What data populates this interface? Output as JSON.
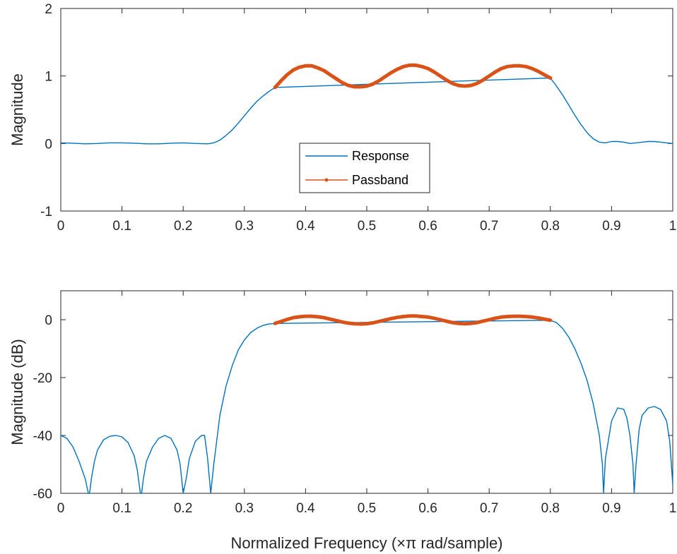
{
  "figure": {
    "xlabel": "Normalized Frequency (×π rad/sample)"
  },
  "chart_data": [
    {
      "type": "line",
      "xlabel": "",
      "ylabel": "Magnitude",
      "xlim": [
        0,
        1
      ],
      "ylim": [
        -1,
        2
      ],
      "xticks": [
        0,
        0.1,
        0.2,
        0.3,
        0.4,
        0.5,
        0.6,
        0.7,
        0.8,
        0.9,
        1
      ],
      "xtick_labels": [
        "0",
        "0.1",
        "0.2",
        "0.3",
        "0.4",
        "0.5",
        "0.6",
        "0.7",
        "0.8",
        "0.9",
        "1"
      ],
      "yticks": [
        -1,
        0,
        1,
        2
      ],
      "ytick_labels": [
        "-1",
        "0",
        "1",
        "2"
      ],
      "grid": false,
      "legend": {
        "placement": "center",
        "entries": [
          "Response",
          "Passband"
        ]
      },
      "series": [
        {
          "name": "Response",
          "color": "#0072BD",
          "x": [
            0,
            0.02,
            0.04,
            0.06,
            0.08,
            0.1,
            0.12,
            0.14,
            0.16,
            0.18,
            0.2,
            0.22,
            0.24,
            0.25,
            0.26,
            0.27,
            0.28,
            0.29,
            0.3,
            0.31,
            0.32,
            0.33,
            0.34,
            0.35,
            0.8,
            0.81,
            0.82,
            0.83,
            0.84,
            0.85,
            0.86,
            0.87,
            0.88,
            0.89,
            0.9,
            0.91,
            0.92,
            0.93,
            0.94,
            0.95,
            0.96,
            0.97,
            0.98,
            0.99,
            1.0
          ],
          "y": [
            0.01,
            0.005,
            -0.005,
            0.0,
            0.01,
            0.01,
            0.005,
            -0.005,
            -0.005,
            0.005,
            0.01,
            0.0,
            -0.005,
            0.01,
            0.05,
            0.12,
            0.2,
            0.3,
            0.41,
            0.52,
            0.62,
            0.7,
            0.77,
            0.83,
            0.97,
            0.85,
            0.72,
            0.57,
            0.42,
            0.28,
            0.16,
            0.07,
            0.02,
            0.01,
            0.03,
            0.03,
            0.02,
            0.0,
            0.01,
            0.02,
            0.03,
            0.03,
            0.02,
            0.01,
            0.0
          ]
        },
        {
          "name": "Passband",
          "color": "#D95319",
          "x": [
            0.35,
            0.36,
            0.37,
            0.38,
            0.39,
            0.4,
            0.41,
            0.42,
            0.43,
            0.44,
            0.45,
            0.46,
            0.47,
            0.48,
            0.49,
            0.5,
            0.51,
            0.52,
            0.53,
            0.54,
            0.55,
            0.56,
            0.57,
            0.58,
            0.59,
            0.6,
            0.61,
            0.62,
            0.63,
            0.64,
            0.65,
            0.66,
            0.67,
            0.68,
            0.69,
            0.7,
            0.71,
            0.72,
            0.73,
            0.74,
            0.75,
            0.76,
            0.77,
            0.78,
            0.79,
            0.8
          ],
          "y": [
            0.83,
            0.93,
            1.02,
            1.09,
            1.13,
            1.15,
            1.15,
            1.12,
            1.08,
            1.02,
            0.96,
            0.9,
            0.86,
            0.84,
            0.84,
            0.85,
            0.88,
            0.93,
            0.99,
            1.05,
            1.1,
            1.14,
            1.16,
            1.16,
            1.14,
            1.11,
            1.06,
            1.0,
            0.94,
            0.89,
            0.86,
            0.85,
            0.86,
            0.89,
            0.94,
            1.0,
            1.06,
            1.11,
            1.14,
            1.15,
            1.15,
            1.14,
            1.11,
            1.07,
            1.02,
            0.97
          ]
        }
      ]
    },
    {
      "type": "line",
      "xlabel": "Normalized Frequency (×π rad/sample)",
      "ylabel": "Magnitude (dB)",
      "xlim": [
        0,
        1
      ],
      "ylim": [
        -60,
        10
      ],
      "xticks": [
        0,
        0.1,
        0.2,
        0.3,
        0.4,
        0.5,
        0.6,
        0.7,
        0.8,
        0.9,
        1
      ],
      "xtick_labels": [
        "0",
        "0.1",
        "0.2",
        "0.3",
        "0.4",
        "0.5",
        "0.6",
        "0.7",
        "0.8",
        "0.9",
        "1"
      ],
      "yticks": [
        -60,
        -40,
        -20,
        0
      ],
      "ytick_labels": [
        "-60",
        "-40",
        "-20",
        "0"
      ],
      "grid": false,
      "series": [
        {
          "name": "Response",
          "color": "#0072BD",
          "x": [
            0,
            0.01,
            0.02,
            0.03,
            0.04,
            0.045,
            0.047,
            0.05,
            0.055,
            0.06,
            0.07,
            0.08,
            0.09,
            0.1,
            0.11,
            0.12,
            0.125,
            0.13,
            0.132,
            0.135,
            0.14,
            0.15,
            0.16,
            0.17,
            0.18,
            0.19,
            0.195,
            0.2,
            0.205,
            0.21,
            0.22,
            0.23,
            0.235,
            0.24,
            0.245,
            0.25,
            0.26,
            0.27,
            0.28,
            0.29,
            0.3,
            0.31,
            0.32,
            0.33,
            0.34,
            0.35,
            0.8,
            0.81,
            0.82,
            0.83,
            0.84,
            0.85,
            0.86,
            0.87,
            0.88,
            0.885,
            0.887,
            0.89,
            0.9,
            0.91,
            0.92,
            0.925,
            0.93,
            0.935,
            0.937,
            0.94,
            0.945,
            0.95,
            0.96,
            0.97,
            0.98,
            0.99,
            0.995,
            1.0
          ],
          "y": [
            -40,
            -41,
            -44,
            -49,
            -55,
            -60,
            -60,
            -55,
            -49,
            -45,
            -41.5,
            -40.3,
            -40,
            -40.5,
            -42.5,
            -47,
            -52,
            -60,
            -60,
            -55,
            -49,
            -44,
            -41,
            -40,
            -41,
            -45,
            -50,
            -60,
            -55,
            -48,
            -42,
            -40,
            -40,
            -48,
            -60,
            -50,
            -33,
            -23,
            -16,
            -10.5,
            -7,
            -4.5,
            -3,
            -2,
            -1.5,
            -1.3,
            -0.2,
            -1,
            -3,
            -6,
            -10,
            -15,
            -21,
            -29,
            -40,
            -50,
            -60,
            -48,
            -35,
            -30.5,
            -31,
            -34,
            -40,
            -50,
            -60,
            -50,
            -38,
            -33,
            -30.5,
            -30,
            -31,
            -35,
            -42,
            -57
          ]
        },
        {
          "name": "Passband",
          "color": "#D95319",
          "x": [
            0.35,
            0.36,
            0.37,
            0.38,
            0.39,
            0.4,
            0.41,
            0.42,
            0.43,
            0.44,
            0.45,
            0.46,
            0.47,
            0.48,
            0.49,
            0.5,
            0.51,
            0.52,
            0.53,
            0.54,
            0.55,
            0.56,
            0.57,
            0.58,
            0.59,
            0.6,
            0.61,
            0.62,
            0.63,
            0.64,
            0.65,
            0.66,
            0.67,
            0.68,
            0.69,
            0.7,
            0.71,
            0.72,
            0.73,
            0.74,
            0.75,
            0.76,
            0.77,
            0.78,
            0.79,
            0.8
          ],
          "y": [
            -1.3,
            -0.6,
            0.1,
            0.7,
            1.0,
            1.2,
            1.2,
            1.0,
            0.7,
            0.2,
            -0.3,
            -0.8,
            -1.2,
            -1.4,
            -1.5,
            -1.4,
            -1.1,
            -0.6,
            -0.1,
            0.4,
            0.8,
            1.1,
            1.3,
            1.3,
            1.1,
            0.9,
            0.5,
            0.0,
            -0.5,
            -1.0,
            -1.3,
            -1.4,
            -1.3,
            -1.0,
            -0.5,
            0.0,
            0.5,
            0.9,
            1.1,
            1.2,
            1.2,
            1.1,
            0.9,
            0.6,
            0.2,
            -0.2
          ]
        }
      ]
    }
  ]
}
